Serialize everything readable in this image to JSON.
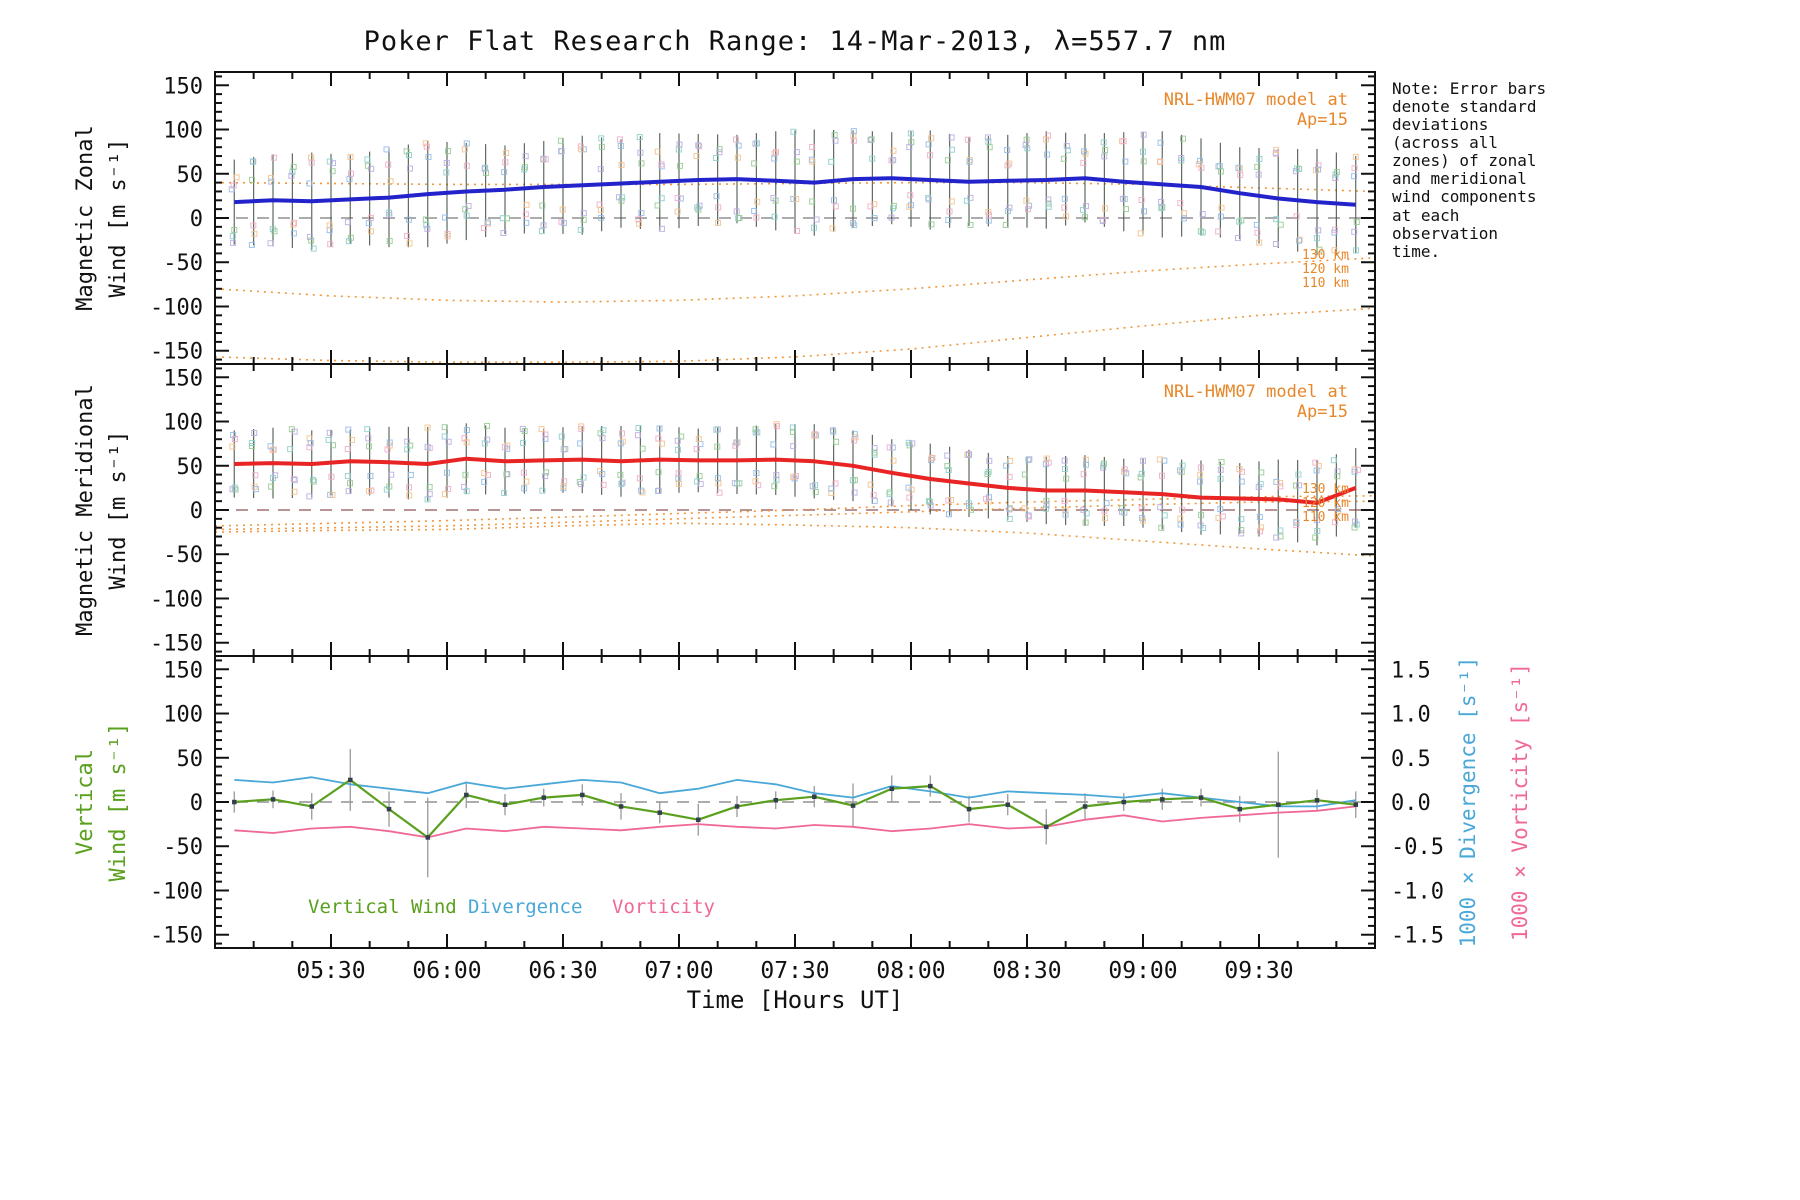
{
  "title": "Poker Flat Research Range: 14-Mar-2013, λ=557.7 nm",
  "note_text": "Note: Error bars denote standard deviations (across all zones) of zonal and meridional wind components at each observation time.",
  "model_label": "NRL-HWM07 model at Ap=15",
  "legend": {
    "vertical_wind": "Vertical Wind",
    "divergence": "Divergence",
    "vorticity": "Vorticity"
  },
  "axis_labels": {
    "zonal_line1": "Magnetic Zonal",
    "zonal_line2": "Wind [m s⁻¹]",
    "meridional_line1": "Magnetic Meridional",
    "meridional_line2": "Wind [m s⁻¹]",
    "vertical_line1": "Vertical",
    "vertical_line2": "Wind [m s⁻¹]",
    "divergence_right": "1000 × Divergence [s⁻¹]",
    "vorticity_right": "1000 × Vorticity [s⁻¹]",
    "x": "Time [Hours UT]"
  },
  "km_labels": [
    "130 km",
    "120 km",
    "110 km"
  ],
  "colors": {
    "zonal_line": "#2323cc",
    "meridional_line": "#e82424",
    "model": "#f09030",
    "model_text": "#e8872a",
    "vertical_wind": "#5aa01e",
    "divergence": "#4aa8d8",
    "vorticity": "#f06898",
    "error_bar": "#4a5a4a",
    "error_bar_gray": "#999999",
    "zero_line": "#909090",
    "marker_dark": "#333f4d",
    "scatter_palette": [
      "#8fb7e8",
      "#90c890",
      "#f0a8c8",
      "#b8a8e0",
      "#f5c08a",
      "#88cccc"
    ]
  },
  "x_axis": {
    "min": 5.0,
    "max": 10.0,
    "major_step_minutes": 30,
    "minor_step_minutes": 10,
    "tick_labels": [
      {
        "t": 5.5,
        "label": "05:30"
      },
      {
        "t": 6.0,
        "label": "06:00"
      },
      {
        "t": 6.5,
        "label": "06:30"
      },
      {
        "t": 7.0,
        "label": "07:00"
      },
      {
        "t": 7.5,
        "label": "07:30"
      },
      {
        "t": 8.0,
        "label": "08:00"
      },
      {
        "t": 8.5,
        "label": "08:30"
      },
      {
        "t": 9.0,
        "label": "09:00"
      },
      {
        "t": 9.5,
        "label": "09:30"
      }
    ]
  },
  "chart_data": [
    {
      "type": "line",
      "name": "magnetic_zonal_wind",
      "ylabel": "Magnetic Zonal Wind [m s⁻¹]",
      "ylim": [
        -150,
        150
      ],
      "y_major_tick": 50,
      "y_minor_tick": 10,
      "x_hours": [
        5.083,
        5.25,
        5.417,
        5.583,
        5.75,
        5.917,
        6.083,
        6.25,
        6.417,
        6.583,
        6.75,
        6.917,
        7.083,
        7.25,
        7.417,
        7.583,
        7.75,
        7.917,
        8.083,
        8.25,
        8.417,
        8.583,
        8.75,
        8.917,
        9.083,
        9.25,
        9.417,
        9.583,
        9.75,
        9.917
      ],
      "measured": {
        "name": "measured zonal wind",
        "values": [
          18,
          20,
          19,
          21,
          23,
          27,
          30,
          32,
          35,
          37,
          39,
          41,
          43,
          44,
          42,
          40,
          44,
          45,
          43,
          41,
          42,
          43,
          45,
          41,
          38,
          35,
          28,
          22,
          18,
          15
        ],
        "err": [
          48,
          52,
          55,
          50,
          56,
          60,
          55,
          50,
          52,
          56,
          50,
          55,
          52,
          50,
          56,
          60,
          55,
          52,
          56,
          50,
          52,
          55,
          50,
          56,
          60,
          55,
          52,
          56,
          60,
          55
        ]
      },
      "models": [
        {
          "name": "130 km",
          "x": [
            5,
            5.5,
            6,
            6.5,
            7,
            7.5,
            8,
            8.5,
            9,
            9.5,
            10
          ],
          "values": [
            40,
            39,
            38,
            38,
            38,
            39,
            40,
            40,
            38,
            34,
            30
          ]
        },
        {
          "name": "120 km",
          "x": [
            5,
            5.5,
            6,
            6.5,
            7,
            7.5,
            8,
            8.5,
            9,
            9.5,
            10
          ],
          "values": [
            -80,
            -88,
            -93,
            -95,
            -93,
            -88,
            -80,
            -70,
            -60,
            -52,
            -45
          ]
        },
        {
          "name": "110 km",
          "x": [
            5,
            5.5,
            6,
            6.5,
            7,
            7.5,
            8,
            8.5,
            9,
            9.5,
            10
          ],
          "values": [
            -157,
            -161,
            -163,
            -163,
            -162,
            -157,
            -148,
            -135,
            -122,
            -110,
            -102
          ]
        }
      ]
    },
    {
      "type": "line",
      "name": "magnetic_meridional_wind",
      "ylabel": "Magnetic Meridional Wind [m s⁻¹]",
      "ylim": [
        -150,
        150
      ],
      "y_major_tick": 50,
      "y_minor_tick": 10,
      "x_hours": [
        5.083,
        5.25,
        5.417,
        5.583,
        5.75,
        5.917,
        6.083,
        6.25,
        6.417,
        6.583,
        6.75,
        6.917,
        7.083,
        7.25,
        7.417,
        7.583,
        7.75,
        7.917,
        8.083,
        8.25,
        8.417,
        8.583,
        8.75,
        8.917,
        9.083,
        9.25,
        9.417,
        9.583,
        9.75,
        9.917
      ],
      "measured": {
        "name": "measured meridional wind",
        "values": [
          52,
          53,
          52,
          55,
          54,
          52,
          58,
          55,
          56,
          57,
          55,
          57,
          56,
          56,
          57,
          55,
          50,
          42,
          35,
          30,
          25,
          22,
          22,
          20,
          18,
          14,
          13,
          12,
          8,
          25
        ],
        "err": [
          38,
          40,
          38,
          36,
          40,
          42,
          40,
          38,
          36,
          38,
          40,
          38,
          36,
          38,
          40,
          42,
          40,
          38,
          40,
          38,
          36,
          38,
          40,
          38,
          40,
          42,
          40,
          45,
          48,
          45
        ]
      },
      "models": [
        {
          "name": "130 km",
          "x": [
            5,
            5.5,
            6,
            6.5,
            7,
            7.5,
            8,
            8.5,
            9,
            9.5,
            10
          ],
          "values": [
            -18,
            -15,
            -12,
            -8,
            -4,
            0,
            5,
            9,
            12,
            15,
            16
          ]
        },
        {
          "name": "120 km",
          "x": [
            5,
            5.5,
            6,
            6.5,
            7,
            7.5,
            8,
            8.5,
            9,
            9.5,
            10
          ],
          "values": [
            -22,
            -20,
            -18,
            -14,
            -10,
            -6,
            -2,
            2,
            6,
            9,
            10
          ]
        },
        {
          "name": "110 km",
          "x": [
            5,
            5.5,
            6,
            6.5,
            7,
            7.5,
            8,
            8.5,
            9,
            9.5,
            10
          ],
          "values": [
            -25,
            -23,
            -22,
            -18,
            -15,
            -17,
            -20,
            -26,
            -35,
            -44,
            -52
          ]
        }
      ]
    },
    {
      "type": "line",
      "name": "vertical_wind_divergence_vorticity",
      "ylabel_left": "Vertical Wind [m s⁻¹]",
      "ylabel_right_1": "1000 × Divergence [s⁻¹]",
      "ylabel_right_2": "1000 × Vorticity [s⁻¹]",
      "ylim_left": [
        -150,
        150
      ],
      "ylim_right": [
        -1.5,
        1.5
      ],
      "x_hours": [
        5.083,
        5.25,
        5.417,
        5.583,
        5.75,
        5.917,
        6.083,
        6.25,
        6.417,
        6.583,
        6.75,
        6.917,
        7.083,
        7.25,
        7.417,
        7.583,
        7.75,
        7.917,
        8.083,
        8.25,
        8.417,
        8.583,
        8.75,
        8.917,
        9.083,
        9.25,
        9.417,
        9.583,
        9.75,
        9.917
      ],
      "vertical_wind": {
        "values": [
          0,
          3,
          -5,
          25,
          -8,
          -40,
          8,
          -3,
          5,
          8,
          -5,
          -12,
          -20,
          -5,
          2,
          6,
          -4,
          15,
          18,
          -8,
          -3,
          -28,
          -5,
          0,
          3,
          5,
          -8,
          -3,
          2,
          -3
        ],
        "err": [
          12,
          10,
          15,
          35,
          20,
          45,
          15,
          12,
          10,
          12,
          15,
          12,
          18,
          12,
          10,
          12,
          25,
          15,
          12,
          15,
          12,
          20,
          15,
          10,
          12,
          10,
          15,
          60,
          12,
          15
        ]
      },
      "divergence": {
        "values": [
          0.25,
          0.22,
          0.28,
          0.2,
          0.15,
          0.1,
          0.22,
          0.15,
          0.2,
          0.25,
          0.22,
          0.1,
          0.15,
          0.25,
          0.2,
          0.1,
          0.05,
          0.18,
          0.12,
          0.05,
          0.12,
          0.1,
          0.08,
          0.05,
          0.1,
          0.05,
          0.0,
          -0.05,
          -0.05,
          0.02
        ]
      },
      "vorticity": {
        "values": [
          -0.32,
          -0.35,
          -0.3,
          -0.28,
          -0.33,
          -0.4,
          -0.3,
          -0.33,
          -0.28,
          -0.3,
          -0.32,
          -0.28,
          -0.25,
          -0.28,
          -0.3,
          -0.26,
          -0.28,
          -0.33,
          -0.3,
          -0.25,
          -0.3,
          -0.28,
          -0.2,
          -0.15,
          -0.22,
          -0.18,
          -0.15,
          -0.12,
          -0.1,
          -0.05
        ]
      }
    }
  ]
}
